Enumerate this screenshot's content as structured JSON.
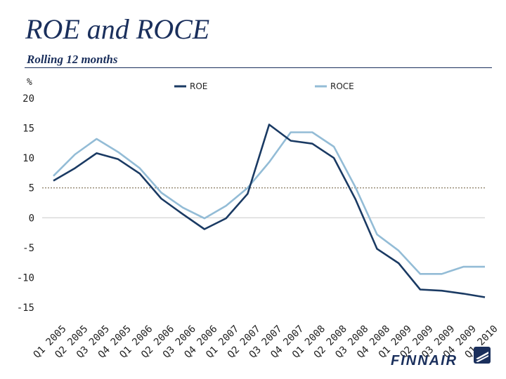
{
  "slide": {
    "title": "ROE and ROCE",
    "subtitle": "Rolling 12 months"
  },
  "brand": {
    "name": "FINNAIR",
    "color": "#1a2f5c"
  },
  "chart_data": {
    "type": "line",
    "ylabel": "%",
    "ylim": [
      -15,
      20
    ],
    "yticks": [
      20,
      15,
      10,
      5,
      0,
      -5,
      -10,
      -15
    ],
    "reference_line": 5,
    "grid": false,
    "legend": "top",
    "categories": [
      "Q1 2005",
      "Q2 2005",
      "Q3 2005",
      "Q4 2005",
      "Q1 2006",
      "Q2 2006",
      "Q3 2006",
      "Q4 2006",
      "Q1 2007",
      "Q2 2007",
      "Q3 2007",
      "Q4 2007",
      "Q1 2008",
      "Q2 2008",
      "Q3 2008",
      "Q4 2008",
      "Q1 2009",
      "Q2 2009",
      "Q3 2009",
      "Q4 2009",
      "Q1 2010"
    ],
    "series": [
      {
        "name": "ROE",
        "color": "#1a3a63",
        "values": [
          6.2,
          8.3,
          10.8,
          9.8,
          7.4,
          3.2,
          0.6,
          -1.9,
          -0.1,
          4.0,
          15.6,
          12.9,
          12.4,
          10.0,
          3.1,
          -5.2,
          -7.6,
          -12.0,
          -12.2,
          -12.7,
          -13.3
        ]
      },
      {
        "name": "ROCE",
        "color": "#93bcd6",
        "values": [
          7.0,
          10.6,
          13.2,
          11.0,
          8.3,
          4.2,
          1.7,
          -0.1,
          2.0,
          5.0,
          9.3,
          14.3,
          14.3,
          11.9,
          5.1,
          -2.8,
          -5.5,
          -9.4,
          -9.4,
          -8.2,
          -8.2
        ]
      }
    ]
  }
}
